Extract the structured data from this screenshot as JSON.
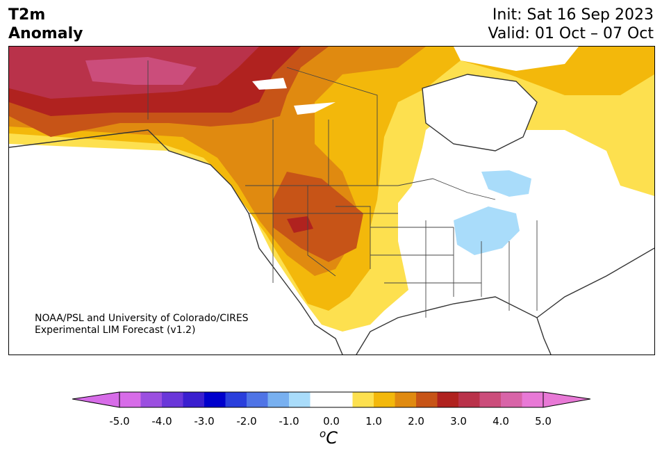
{
  "title": {
    "line1": "T2m",
    "line2": "Anomaly"
  },
  "dates": {
    "init": "Init: Sat 16 Sep 2023",
    "valid": "Valid: 01 Oct – 07 Oct"
  },
  "credit": {
    "line1": "NOAA/PSL and University of Colorado/CIRES",
    "line2": "Experimental LIM Forecast (v1.2)"
  },
  "colorbar": {
    "ticks": [
      "-5.0",
      "-4.0",
      "-3.0",
      "-2.0",
      "-1.0",
      "0.0",
      "1.0",
      "2.0",
      "3.0",
      "4.0",
      "5.0"
    ],
    "colors": [
      "#d76ce8",
      "#9b4fe0",
      "#6a37d9",
      "#3a1fcf",
      "#0000cc",
      "#2a3fdc",
      "#4f74e6",
      "#78b0f0",
      "#a9dcfa",
      "#ffffff",
      "#ffffff",
      "#fde04f",
      "#f3b80b",
      "#e08a10",
      "#c75417",
      "#b0221f",
      "#b9324a",
      "#cb4d7b",
      "#d864a8",
      "#e879d6"
    ],
    "unit_base": "C",
    "unit_sup": "o"
  },
  "map_colors": {
    "ocean": "#ffffff",
    "anom_0_5": "#fde04f",
    "anom_1_0": "#f3b80b",
    "anom_1_5": "#e08a10",
    "anom_2_0": "#c75417",
    "anom_2_5": "#b0221f",
    "anom_3_0": "#b9324a",
    "anom_3_5": "#cb4d7b",
    "cool": "#a9dcfa",
    "coast": "#333333"
  }
}
